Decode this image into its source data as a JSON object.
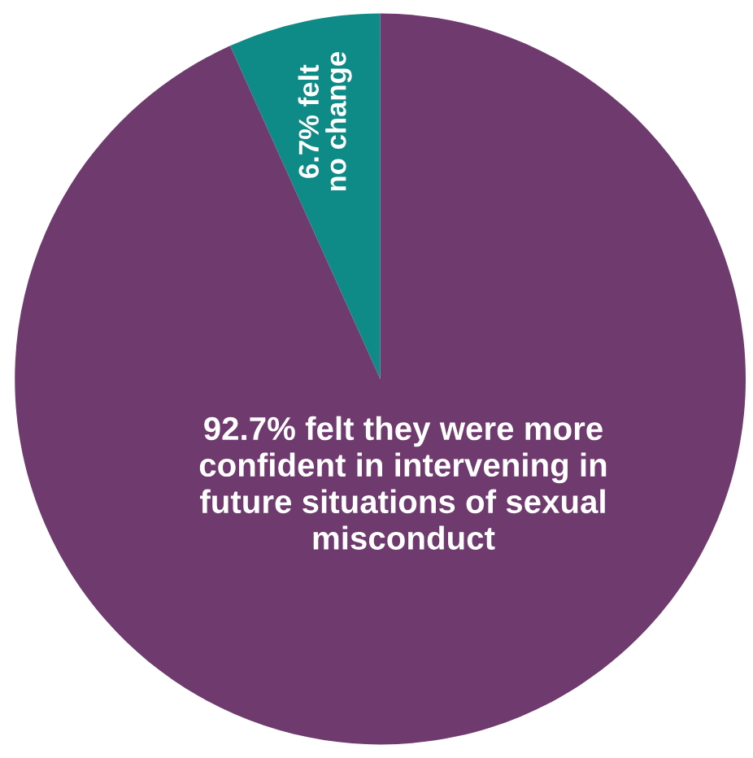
{
  "chart_data": {
    "type": "pie",
    "categories": [
      "6.7% felt\nno change",
      "92.7% felt they were more\nconfident in intervening in\nfuture situations of sexual\nmisconduct"
    ],
    "values": [
      6.7,
      92.7
    ],
    "colors": [
      "#0e8a87",
      "#6f3a6e"
    ]
  }
}
